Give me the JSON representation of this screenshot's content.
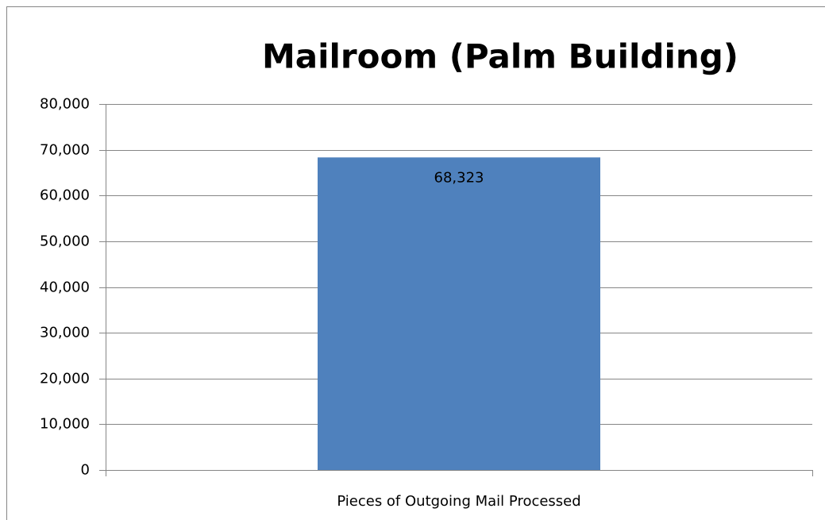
{
  "chart_data": {
    "type": "bar",
    "title": "Mailroom (Palm Building)",
    "categories": [
      "Pieces of Outgoing Mail Processed"
    ],
    "values": [
      68323
    ],
    "value_labels": [
      "68,323"
    ],
    "color": "#4f81bd",
    "ylim": [
      0,
      80000
    ],
    "yticks": [
      0,
      {
        "value": 10000,
        "label": "10,000"
      },
      {
        "value": 20000,
        "label": "20,000"
      },
      {
        "value": 30000,
        "label": "30,000"
      },
      {
        "value": 40000,
        "label": "40,000"
      },
      {
        "value": 50000,
        "label": "50,000"
      },
      {
        "value": 60000,
        "label": "60,000"
      },
      {
        "value": 70000,
        "label": "70,000"
      },
      {
        "value": 80000,
        "label": "80,000"
      }
    ],
    "grid": true
  }
}
